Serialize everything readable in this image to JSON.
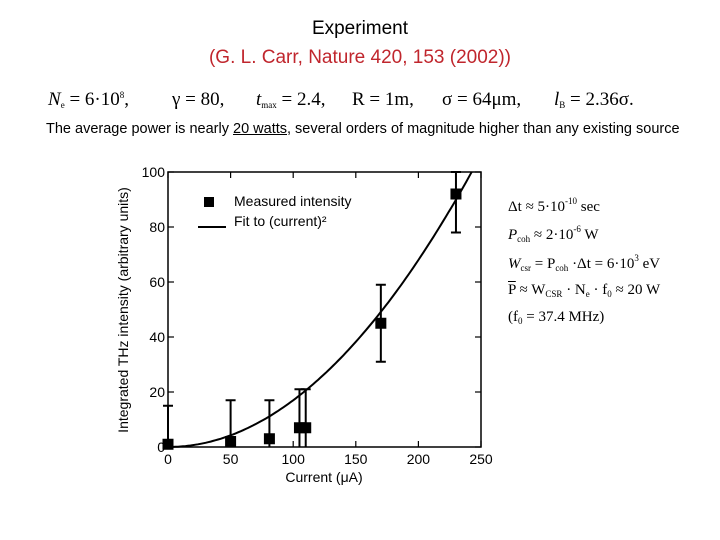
{
  "slide": {
    "title": "Experiment",
    "reference": "(G. L. Carr, Nature 420, 153 (2002))",
    "params": {
      "ne_lhs": "N",
      "ne_sub": "e",
      "ne_rhs": " = 6·10",
      "ne_exp": "8",
      "ne_tail": ",",
      "gamma": "γ = 80,",
      "tmax_lhs": "t",
      "tmax_sub": "max",
      "tmax_rhs": " = 2.4,",
      "radius": "R = 1m,",
      "sigma": "σ = 64μm,",
      "lb_lhs": "l",
      "lb_sub": "B",
      "lb_rhs": " = 2.36σ."
    },
    "text_before": "The average power is nearly ",
    "text_underlined": "20 watts",
    "text_after": ", several orders of magnitude higher than any existing source",
    "equations": {
      "e1_a": "Δt ≈ 5·10",
      "e1_exp": "-10",
      "e1_b": " sec",
      "e2_a": "P",
      "e2_sub": "coh",
      "e2_b": " ≈ 2·10",
      "e2_exp": "-6",
      "e2_c": " W",
      "e3_a": "W",
      "e3_sub1": "csr",
      "e3_b": " = P",
      "e3_sub2": "coh",
      "e3_c": " ·Δt = 6·10",
      "e3_exp": "3",
      "e3_d": " eV",
      "e4_a": "P",
      "e4_b": " ≈ W",
      "e4_sub1": "CSR",
      "e4_c": " · N",
      "e4_sub2": "e",
      "e4_d": " · f",
      "e4_sub3": "0",
      "e4_e": " ≈ 20 W",
      "e5_a": "(f",
      "e5_sub": "0",
      "e5_b": " = 37.4 MHz)"
    }
  },
  "chart_data": {
    "type": "scatter",
    "title": "",
    "xlabel": "Current (μA)",
    "ylabel": "Integrated THz intensity (arbitrary units)",
    "xlim": [
      0,
      250
    ],
    "ylim": [
      0,
      100
    ],
    "xticks": [
      "0",
      "50",
      "100",
      "150",
      "200",
      "250"
    ],
    "yticks": [
      "0",
      "20",
      "40",
      "60",
      "80",
      "100"
    ],
    "legend": {
      "marker_label": "Measured intensity",
      "line_label": "Fit to (current)²",
      "position": "top-left"
    },
    "series": [
      {
        "name": "Measured intensity",
        "marker": "square",
        "points": [
          {
            "x": 0,
            "y": 1,
            "err": 14
          },
          {
            "x": 50,
            "y": 2,
            "err": 15
          },
          {
            "x": 81,
            "y": 3,
            "err": 14
          },
          {
            "x": 105,
            "y": 7,
            "err": 14
          },
          {
            "x": 110,
            "y": 7,
            "err": 14
          },
          {
            "x": 170,
            "y": 45,
            "err": 14
          },
          {
            "x": 230,
            "y": 92,
            "err": 14
          }
        ]
      },
      {
        "name": "Fit to (current)²",
        "type": "line",
        "fit": "quadratic",
        "coef": 0.0017
      }
    ]
  }
}
